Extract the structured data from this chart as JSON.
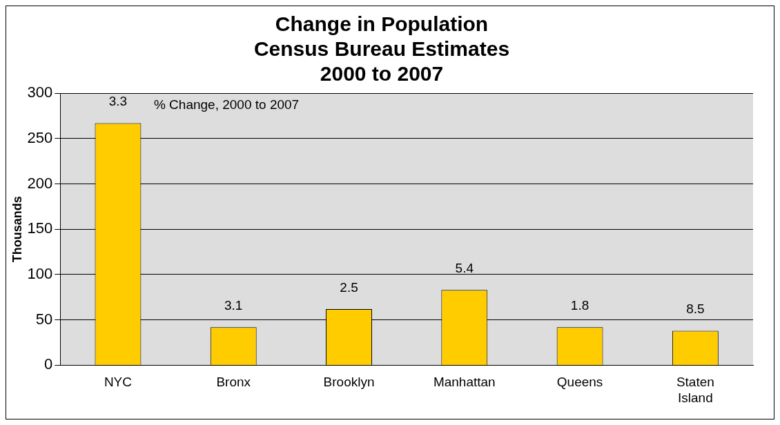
{
  "chart_data": {
    "type": "bar",
    "title": "Change in Population\nCensus Bureau Estimates\n2000 to 2007",
    "ylabel": "Thousands",
    "categories": [
      "NYC",
      "Bronx",
      "Brooklyn",
      "Manhattan",
      "Queens",
      "Staten Island"
    ],
    "values": [
      267,
      42,
      62,
      83,
      42,
      38
    ],
    "annotations": [
      "% Change, 2000 to 2007",
      {
        "text": "3.3",
        "x": "NYC",
        "y": 267
      },
      {
        "text": "3.1",
        "x": "Bronx",
        "y": 42
      },
      {
        "text": "2.5",
        "x": "Brooklyn",
        "y": 62
      },
      {
        "text": "5.4",
        "x": "Manhattan",
        "y": 83
      },
      {
        "text": "1.8",
        "x": "Queens",
        "y": 42
      },
      {
        "text": "8.5",
        "x": "Staten Island",
        "y": 38
      }
    ],
    "color": "#ffcc00",
    "ylim": [
      0,
      300
    ],
    "yticks": [
      0,
      50,
      100,
      150,
      200,
      250,
      300
    ],
    "grid": "y",
    "legend": false
  }
}
